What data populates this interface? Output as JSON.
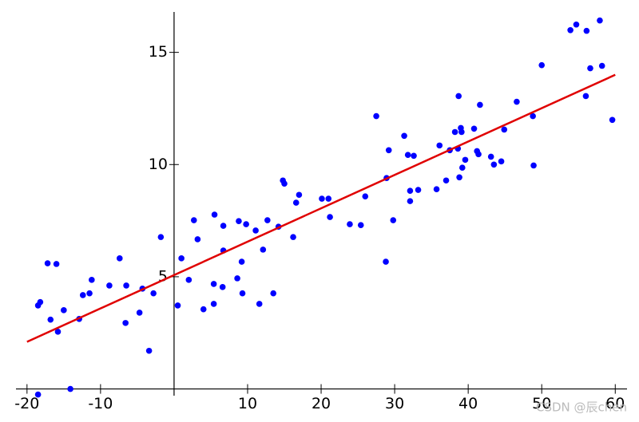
{
  "chart_data": {
    "type": "scatter",
    "x": [
      -18.5,
      -14.1,
      -18.5,
      -18.2,
      -17.2,
      -16.0,
      -16.8,
      -15.8,
      -15.0,
      -12.9,
      -12.4,
      -11.5,
      -11.2,
      -8.8,
      -7.4,
      -6.5,
      -6.6,
      -4.7,
      -4.3,
      -3.4,
      -2.8,
      -1.8,
      0.5,
      1.0,
      2.0,
      2.7,
      3.2,
      4.0,
      5.4,
      5.4,
      5.5,
      6.6,
      6.7,
      6.7,
      8.6,
      8.8,
      9.2,
      9.3,
      9.8,
      11.1,
      11.6,
      12.1,
      12.7,
      13.5,
      14.2,
      14.8,
      15.0,
      16.2,
      16.6,
      17.0,
      20.1,
      21.0,
      21.2,
      23.9,
      25.4,
      26.0,
      27.5,
      28.8,
      28.9,
      29.2,
      29.8,
      31.3,
      31.8,
      32.1,
      32.1,
      32.6,
      33.2,
      35.7,
      36.1,
      37.0,
      37.5,
      38.2,
      38.6,
      38.7,
      38.8,
      39.0,
      39.2,
      39.1,
      39.6,
      40.8,
      41.2,
      41.4,
      41.6,
      43.1,
      43.5,
      44.5,
      44.9,
      46.6,
      48.8,
      48.9,
      50.0,
      53.9,
      54.7,
      56.1,
      56.0,
      56.6,
      57.9,
      58.2,
      59.6
    ],
    "values": [
      -0.25,
      0,
      3.72,
      3.87,
      5.6,
      5.57,
      3.09,
      2.55,
      3.51,
      3.12,
      4.18,
      4.26,
      4.86,
      4.61,
      5.82,
      4.61,
      2.94,
      3.4,
      4.47,
      1.7,
      4.26,
      6.77,
      3.72,
      5.82,
      4.86,
      7.52,
      6.67,
      3.55,
      3.79,
      4.68,
      7.77,
      4.54,
      7.27,
      6.17,
      4.93,
      7.48,
      5.67,
      4.26,
      7.34,
      7.06,
      3.79,
      6.21,
      7.52,
      4.26,
      7.23,
      9.29,
      9.15,
      6.77,
      8.3,
      8.65,
      8.48,
      8.48,
      7.66,
      7.34,
      7.3,
      8.58,
      12.16,
      5.67,
      9.4,
      10.64,
      7.52,
      11.28,
      10.43,
      8.83,
      8.37,
      10.39,
      8.87,
      8.9,
      10.85,
      9.29,
      10.64,
      11.45,
      10.71,
      13.05,
      9.43,
      11.63,
      9.86,
      11.45,
      10.21,
      11.6,
      10.6,
      10.46,
      12.66,
      10.35,
      10.0,
      10.14,
      11.56,
      12.8,
      12.16,
      9.96,
      14.43,
      15.99,
      16.24,
      15.96,
      13.05,
      14.29,
      16.42,
      14.4,
      11.99
    ],
    "color": "#0000ff",
    "fit_line": {
      "x": [
        -20,
        60
      ],
      "values": [
        2.1,
        14.0
      ],
      "color": "#e00000"
    },
    "xlim": [
      -21.5,
      61.6
    ],
    "ylim": [
      -0.3,
      16.8
    ],
    "xticks": [
      -20,
      -10,
      10,
      20,
      30,
      40,
      50,
      60
    ],
    "yticks": [
      5,
      10,
      15
    ],
    "watermark": "CSDN @辰chen"
  }
}
